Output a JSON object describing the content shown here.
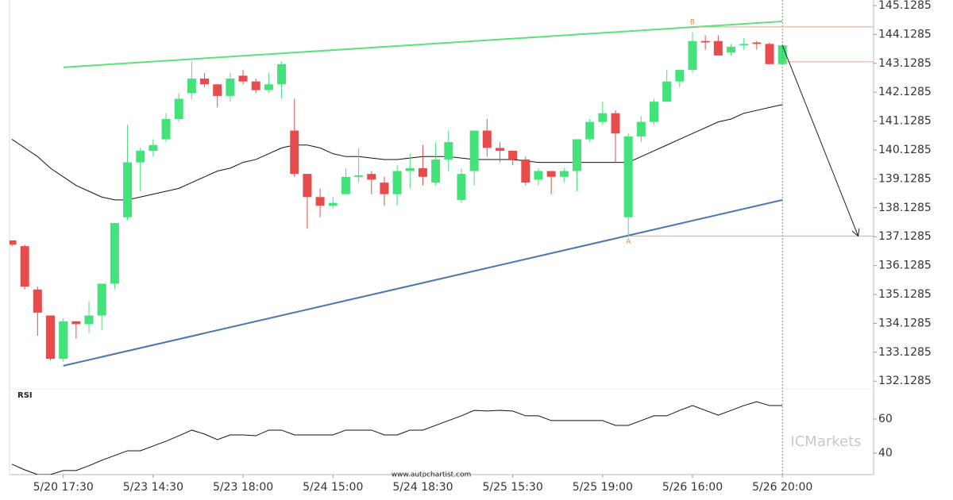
{
  "chart_data": [
    {
      "type": "candlestick",
      "categories": [
        null,
        null,
        null,
        null,
        "5/20 17:30",
        null,
        null,
        null,
        null,
        null,
        null,
        "5/23 14:30",
        null,
        null,
        null,
        null,
        null,
        null,
        "5/23 18:00",
        null,
        null,
        null,
        null,
        null,
        null,
        "5/24 15:00",
        null,
        null,
        null,
        null,
        null,
        null,
        "5/24 18:30",
        null,
        null,
        null,
        null,
        null,
        null,
        "5/25 15:30",
        null,
        null,
        null,
        null,
        null,
        null,
        "5/25 19:00",
        null,
        null,
        null,
        null,
        null,
        null,
        "5/26 16:00",
        null,
        null,
        null,
        null,
        null,
        null,
        "5/26 20:00"
      ],
      "open": [
        137.0,
        136.8,
        135.3,
        134.4,
        132.9,
        134.2,
        134.1,
        134.4,
        135.5,
        137.8,
        139.7,
        140.1,
        140.5,
        141.2,
        142.1,
        142.6,
        142.4,
        142.0,
        142.7,
        142.5,
        142.2,
        142.4,
        140.8,
        139.3,
        138.5,
        138.2,
        138.6,
        139.2,
        139.3,
        139.0,
        138.6,
        139.4,
        139.5,
        139.0,
        139.8,
        138.4,
        139.4,
        140.8,
        140.2,
        140.1,
        139.8,
        139.1,
        139.4,
        139.2,
        139.4,
        140.5,
        141.1,
        141.4,
        137.8,
        140.6,
        141.1,
        141.8,
        142.5,
        142.9,
        143.9,
        143.9,
        143.5,
        143.75,
        143.85,
        143.8,
        143.1
      ],
      "high": [
        137.0,
        136.85,
        135.4,
        134.4,
        134.3,
        134.2,
        134.9,
        135.5,
        137.6,
        141.0,
        140.2,
        140.5,
        141.4,
        142.1,
        143.2,
        142.8,
        142.4,
        142.8,
        142.9,
        142.6,
        142.8,
        143.2,
        141.9,
        139.3,
        138.8,
        138.5,
        139.5,
        140.2,
        139.4,
        139.2,
        139.6,
        140.0,
        140.3,
        140.4,
        140.8,
        139.5,
        140.8,
        141.2,
        140.4,
        140.1,
        139.9,
        139.5,
        139.4,
        139.5,
        140.5,
        141.2,
        141.8,
        141.5,
        140.7,
        141.3,
        141.9,
        142.9,
        142.9,
        144.2,
        144.1,
        144.1,
        143.8,
        144.0,
        143.9,
        143.85,
        143.8
      ],
      "low": [
        136.8,
        135.3,
        133.7,
        132.85,
        132.8,
        133.6,
        133.8,
        133.9,
        135.3,
        137.7,
        138.7,
        139.9,
        140.4,
        141.1,
        141.9,
        142.3,
        141.6,
        141.8,
        142.4,
        142.1,
        142.1,
        141.9,
        139.2,
        137.4,
        137.8,
        138.1,
        138.6,
        139.0,
        138.6,
        138.2,
        138.2,
        138.8,
        138.9,
        138.9,
        139.4,
        138.3,
        138.9,
        139.9,
        139.7,
        139.6,
        138.9,
        138.9,
        138.6,
        139.0,
        138.7,
        140.4,
        141.0,
        139.7,
        137.1,
        140.4,
        141.0,
        141.8,
        142.3,
        142.8,
        143.6,
        143.4,
        143.4,
        143.6,
        143.6,
        143.1,
        143.1
      ],
      "close": [
        136.85,
        135.4,
        134.5,
        132.9,
        134.2,
        134.1,
        134.4,
        135.5,
        137.6,
        139.7,
        140.1,
        140.3,
        141.2,
        141.9,
        142.6,
        142.4,
        142.0,
        142.6,
        142.5,
        142.2,
        142.4,
        143.1,
        139.3,
        138.5,
        138.2,
        138.3,
        139.2,
        139.25,
        139.1,
        138.6,
        139.4,
        139.5,
        139.2,
        139.8,
        140.4,
        139.3,
        140.8,
        140.2,
        140.1,
        139.8,
        139.0,
        139.4,
        139.2,
        139.4,
        140.5,
        141.1,
        141.4,
        140.7,
        140.6,
        141.1,
        141.8,
        142.5,
        142.9,
        143.9,
        143.85,
        143.4,
        143.7,
        143.8,
        143.8,
        143.1,
        143.75
      ],
      "up_color": "#44e27a",
      "down_color": "#e64c4c",
      "ma": {
        "color": "#111111",
        "values": [
          140.5,
          140.2,
          139.9,
          139.5,
          139.2,
          138.9,
          138.7,
          138.5,
          138.4,
          138.4,
          138.5,
          138.6,
          138.7,
          138.8,
          139.0,
          139.2,
          139.4,
          139.5,
          139.7,
          139.8,
          140.0,
          140.2,
          140.3,
          140.3,
          140.2,
          140.0,
          139.9,
          139.9,
          139.85,
          139.8,
          139.8,
          139.85,
          139.9,
          139.9,
          139.9,
          139.85,
          139.8,
          139.8,
          139.8,
          139.8,
          139.75,
          139.7,
          139.7,
          139.7,
          139.7,
          139.7,
          139.7,
          139.7,
          139.7,
          139.9,
          140.1,
          140.3,
          140.5,
          140.7,
          140.9,
          141.1,
          141.2,
          141.4,
          141.5,
          141.6,
          141.7
        ]
      },
      "trendlines": [
        {
          "color": "#5ce07e",
          "x": [
            4,
            60
          ],
          "values": [
            142.99,
            144.58
          ]
        },
        {
          "color": "#4a76b0",
          "x": [
            4,
            60
          ],
          "values": [
            132.66,
            138.4
          ]
        }
      ],
      "levels": [
        {
          "color": "#f0a070",
          "x": 53,
          "value": 144.39
        },
        {
          "color": "#f0a070",
          "x": 60,
          "value": 143.18
        },
        {
          "color": "#f0a070",
          "x": 48,
          "value": 137.15
        }
      ],
      "annotations": [
        {
          "text": "B",
          "x": 53,
          "value": 144.55,
          "color": "#e8884a"
        },
        {
          "text": "A",
          "x": 48,
          "value": 136.95,
          "color": "#e8884a"
        }
      ],
      "arrow": {
        "x": [
          60,
          65.9
        ],
        "values": [
          143.75,
          137.15
        ],
        "color": "#222222"
      },
      "ylim": [
        131.86,
        145.32
      ],
      "yticks": [
        132.1285,
        133.1285,
        134.1285,
        135.1285,
        136.1285,
        137.1285,
        138.1285,
        139.1285,
        140.1285,
        141.1285,
        142.1285,
        143.1285,
        144.1285,
        145.1285
      ]
    },
    {
      "type": "line",
      "title": "RSI",
      "color": "#111111",
      "values": [
        33.5,
        30.2,
        27.4,
        27.4,
        29.8,
        29.8,
        32.6,
        35.8,
        38.6,
        41.4,
        41.4,
        44.2,
        47,
        50.2,
        53.5,
        51.2,
        47.9,
        50.7,
        50.7,
        50.2,
        53.5,
        53.5,
        50.7,
        50.7,
        50.7,
        50.7,
        53.5,
        53.5,
        53.5,
        50.7,
        50.7,
        53.5,
        53.5,
        56.3,
        59.1,
        61.9,
        65.1,
        64.7,
        65.1,
        64.7,
        61.9,
        61.9,
        59.1,
        59.1,
        59.1,
        59.1,
        59.1,
        56.3,
        56.3,
        59.1,
        61.9,
        61.9,
        65.1,
        67.9,
        65.1,
        62.3,
        65.1,
        67.9,
        70.2,
        67.9,
        67.9
      ],
      "ylim": [
        27.4,
        77.7
      ],
      "yticks": [
        40,
        60
      ]
    }
  ],
  "watermark": "www.autochartist.com",
  "logo": "ICMarkets"
}
